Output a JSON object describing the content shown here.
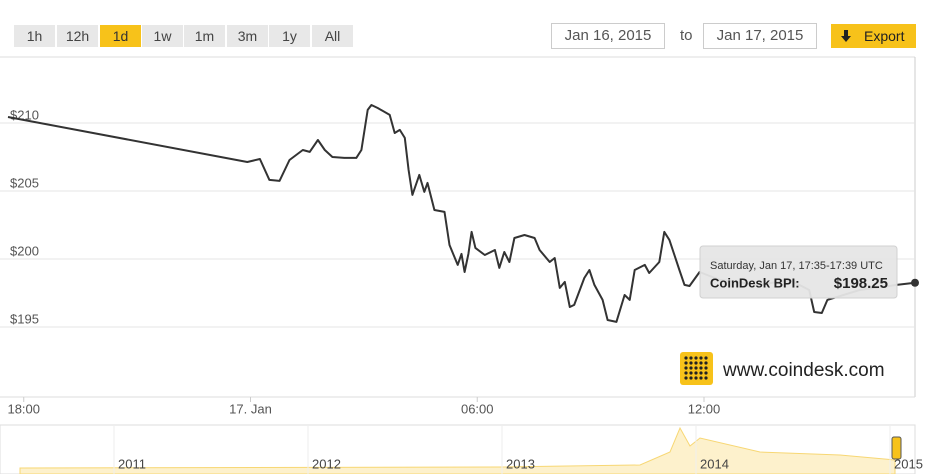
{
  "toolbar": {
    "ranges": [
      "1h",
      "12h",
      "1d",
      "1w",
      "1m",
      "3m",
      "1y",
      "All"
    ],
    "selected": "1d",
    "from": "Jan 16, 2015",
    "to_label": "to",
    "to": "Jan 17, 2015",
    "export": "Export"
  },
  "chart_data": {
    "type": "line",
    "color": "#333333",
    "x": [
      "2015-01-16T17:35",
      "2015-01-16T23:55",
      "2015-01-17T00:15",
      "2015-01-17T00:30",
      "2015-01-17T00:46",
      "2015-01-17T01:02",
      "2015-01-17T01:23",
      "2015-01-17T01:34",
      "2015-01-17T01:47",
      "2015-01-17T01:58",
      "2015-01-17T02:10",
      "2015-01-17T02:29",
      "2015-01-17T02:48",
      "2015-01-17T02:56",
      "2015-01-17T03:06",
      "2015-01-17T03:12",
      "2015-01-17T03:22",
      "2015-01-17T03:41",
      "2015-01-17T03:49",
      "2015-01-17T03:57",
      "2015-01-17T04:05",
      "2015-01-17T04:11",
      "2015-01-17T04:17",
      "2015-01-17T04:28",
      "2015-01-17T04:36",
      "2015-01-17T04:41",
      "2015-01-17T04:52",
      "2015-01-17T05:08",
      "2015-01-17T05:16",
      "2015-01-17T05:29",
      "2015-01-17T05:35",
      "2015-01-17T05:40",
      "2015-01-17T05:46",
      "2015-01-17T05:51",
      "2015-01-17T05:57",
      "2015-01-17T06:12",
      "2015-01-17T06:28",
      "2015-01-17T06:35",
      "2015-01-17T06:43",
      "2015-01-17T06:51",
      "2015-01-17T06:59",
      "2015-01-17T07:15",
      "2015-01-17T07:31",
      "2015-01-17T07:39",
      "2015-01-17T07:55",
      "2015-01-17T08:03",
      "2015-01-17T08:11",
      "2015-01-17T08:19",
      "2015-01-17T08:27",
      "2015-01-17T08:34",
      "2015-01-17T08:50",
      "2015-01-17T08:58",
      "2015-01-17T09:06",
      "2015-01-17T09:19",
      "2015-01-17T09:27",
      "2015-01-17T09:41",
      "2015-01-17T09:54",
      "2015-01-17T10:02",
      "2015-01-17T10:10",
      "2015-01-17T10:26",
      "2015-01-17T10:33",
      "2015-01-17T10:49",
      "2015-01-17T10:57",
      "2015-01-17T11:05",
      "2015-01-17T11:21",
      "2015-01-17T11:29",
      "2015-01-17T11:37",
      "2015-01-17T11:53",
      "2015-01-17T12:25",
      "2015-01-17T13:28",
      "2015-01-17T14:16",
      "2015-01-17T14:47",
      "2015-01-17T14:55",
      "2015-01-17T15:07",
      "2015-01-17T15:16",
      "2015-01-17T16:07",
      "2015-01-17T17:06",
      "2015-01-17T17:35"
    ],
    "values": [
      210.44,
      207.13,
      207.35,
      205.81,
      205.74,
      207.28,
      208.01,
      207.87,
      208.75,
      208.01,
      207.5,
      207.43,
      207.43,
      208.01,
      210.96,
      211.32,
      211.1,
      210.59,
      209.26,
      209.49,
      208.9,
      206.54,
      204.71,
      206.18,
      204.93,
      205.59,
      203.6,
      203.46,
      201.03,
      199.56,
      200.37,
      199.04,
      200.37,
      201.99,
      200.81,
      200.29,
      200.66,
      199.34,
      200.51,
      199.78,
      201.54,
      201.76,
      201.54,
      200.66,
      199.78,
      200.07,
      197.87,
      198.31,
      196.47,
      196.62,
      198.6,
      199.19,
      198.09,
      196.99,
      195.51,
      195.37,
      197.35,
      196.99,
      199.19,
      199.56,
      198.97,
      199.78,
      201.99,
      201.4,
      199.19,
      198.09,
      198.01,
      199.04,
      198.46,
      198.09,
      198.46,
      197.72,
      196.1,
      196.03,
      196.99,
      197.72,
      198.09,
      198.25
    ],
    "xlim": [
      "2015-01-16T17:35",
      "2015-01-17T17:35"
    ],
    "xticks": [
      {
        "value": "2015-01-16T18:00",
        "label": "18:00"
      },
      {
        "value": "2015-01-17T00:00",
        "label": "17. Jan"
      },
      {
        "value": "2015-01-17T06:00",
        "label": "06:00"
      },
      {
        "value": "2015-01-17T12:00",
        "label": "12:00"
      }
    ],
    "ylim": [
      189.85,
      214.85
    ],
    "yticks": [
      {
        "value": 195,
        "label": "$195"
      },
      {
        "value": 200,
        "label": "$200"
      },
      {
        "value": 205,
        "label": "$205"
      },
      {
        "value": 210,
        "label": "$210"
      }
    ],
    "grid": true,
    "tooltip": {
      "title": "Saturday, Jan 17, 17:35-17:39 UTC",
      "label": "CoinDesk BPI:",
      "value": "$198.25"
    }
  },
  "navigator": {
    "years": [
      "2011",
      "2012",
      "2013",
      "2014",
      "2015"
    ]
  },
  "watermark": "www.coindesk.com"
}
